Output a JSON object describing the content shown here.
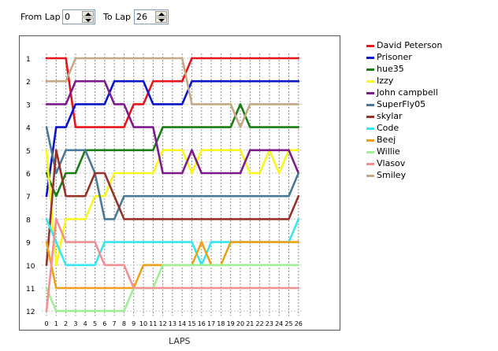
{
  "controls": {
    "from_label": "From Lap",
    "from_value": "0",
    "to_label": "To Lap",
    "to_value": "26"
  },
  "colors": {
    "David Peterson": "#e8141c",
    "Prisoner": "#0a14c8",
    "hue35": "#1a7d12",
    "Izzy": "#f8f81c",
    "John campbell": "#7c1a8c",
    "SuperFly05": "#4a7898",
    "skylar": "#963228",
    "Code": "#36e6f0",
    "Beej": "#f0a018",
    "Willie": "#9ef094",
    "Vlasov": "#f09090",
    "Smiley": "#c4aa84"
  },
  "chart_data": {
    "type": "line",
    "xlabel": "LAPS",
    "ylabel": "",
    "x": [
      0,
      1,
      2,
      3,
      4,
      5,
      6,
      7,
      8,
      9,
      10,
      11,
      12,
      13,
      14,
      15,
      16,
      17,
      18,
      19,
      20,
      21,
      22,
      23,
      24,
      25,
      26
    ],
    "xlim": [
      0,
      26
    ],
    "ylim": [
      1,
      12
    ],
    "y_reversed": true,
    "x_ticks": [
      "0",
      "1",
      "2",
      "3",
      "4",
      "5",
      "6",
      "7",
      "8",
      "9",
      "10",
      "11",
      "12",
      "13",
      "14",
      "15",
      "16",
      "17",
      "18",
      "19",
      "20",
      "21",
      "22",
      "23",
      "24",
      "25",
      "26"
    ],
    "y_ticks": [
      "1",
      "2",
      "3",
      "4",
      "5",
      "6",
      "7",
      "8",
      "9",
      "10",
      "11",
      "12"
    ],
    "grid": true,
    "legend_position": "right",
    "series": [
      {
        "name": "David Peterson",
        "values": [
          1,
          1,
          1,
          4,
          4,
          4,
          4,
          4,
          4,
          3,
          3,
          2,
          2,
          2,
          2,
          1,
          1,
          1,
          1,
          1,
          1,
          1,
          1,
          1,
          1,
          1,
          1
        ]
      },
      {
        "name": "Prisoner",
        "values": [
          7,
          4,
          4,
          3,
          3,
          3,
          3,
          2,
          2,
          2,
          2,
          3,
          3,
          3,
          3,
          2,
          2,
          2,
          2,
          2,
          2,
          2,
          2,
          2,
          2,
          2,
          2
        ]
      },
      {
        "name": "hue35",
        "values": [
          6,
          7,
          6,
          6,
          5,
          5,
          5,
          5,
          5,
          5,
          5,
          5,
          4,
          4,
          4,
          4,
          4,
          4,
          4,
          4,
          3,
          4,
          4,
          4,
          4,
          4,
          4
        ]
      },
      {
        "name": "Izzy",
        "values": [
          5,
          10,
          8,
          8,
          8,
          7,
          7,
          6,
          6,
          6,
          6,
          6,
          5,
          5,
          5,
          6,
          5,
          5,
          5,
          5,
          5,
          6,
          6,
          5,
          6,
          5,
          5
        ]
      },
      {
        "name": "John campbell",
        "values": [
          3,
          3,
          3,
          2,
          2,
          2,
          2,
          3,
          3,
          4,
          4,
          4,
          6,
          6,
          6,
          5,
          6,
          6,
          6,
          6,
          6,
          5,
          5,
          5,
          5,
          5,
          6
        ]
      },
      {
        "name": "SuperFly05",
        "values": [
          4,
          6,
          5,
          5,
          5,
          6,
          8,
          8,
          7,
          7,
          7,
          7,
          7,
          7,
          7,
          7,
          7,
          7,
          7,
          7,
          7,
          7,
          7,
          7,
          7,
          7,
          6
        ]
      },
      {
        "name": "skylar",
        "values": [
          10,
          5,
          7,
          7,
          7,
          6,
          6,
          7,
          8,
          8,
          8,
          8,
          8,
          8,
          8,
          8,
          8,
          8,
          8,
          8,
          8,
          8,
          8,
          8,
          8,
          8,
          7
        ]
      },
      {
        "name": "Code",
        "values": [
          8,
          9,
          10,
          10,
          10,
          10,
          9,
          9,
          9,
          9,
          9,
          9,
          9,
          9,
          9,
          9,
          10,
          9,
          9,
          9,
          9,
          9,
          9,
          9,
          9,
          9,
          8
        ]
      },
      {
        "name": "Beej",
        "values": [
          9,
          11,
          11,
          11,
          11,
          11,
          11,
          11,
          11,
          11,
          10,
          10,
          10,
          10,
          10,
          10,
          9,
          10,
          10,
          9,
          9,
          9,
          9,
          9,
          9,
          9,
          9
        ]
      },
      {
        "name": "Willie",
        "values": [
          11,
          12,
          12,
          12,
          12,
          12,
          12,
          12,
          12,
          11,
          11,
          11,
          10,
          10,
          10,
          10,
          10,
          10,
          10,
          10,
          10,
          10,
          10,
          10,
          10,
          10,
          10
        ]
      },
      {
        "name": "Vlasov",
        "values": [
          12,
          8,
          9,
          9,
          9,
          9,
          10,
          10,
          10,
          11,
          11,
          11,
          11,
          11,
          11,
          11,
          11,
          11,
          11,
          11,
          11,
          11,
          11,
          11,
          11,
          11,
          11
        ]
      },
      {
        "name": "Smiley",
        "values": [
          2,
          2,
          2,
          1,
          1,
          1,
          1,
          1,
          1,
          1,
          1,
          1,
          1,
          1,
          1,
          3,
          3,
          3,
          3,
          3,
          4,
          3,
          3,
          3,
          3,
          3,
          3
        ]
      }
    ]
  }
}
